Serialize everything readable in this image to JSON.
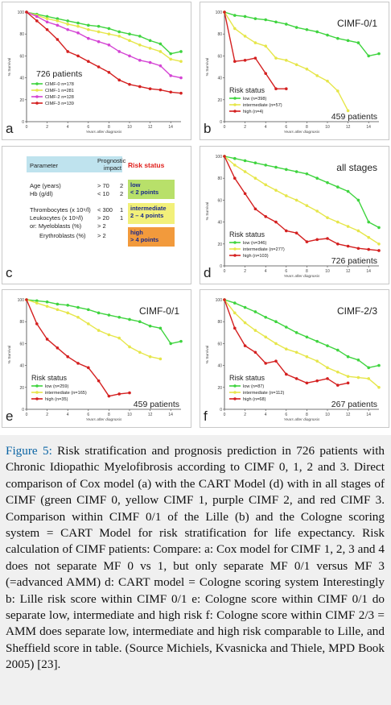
{
  "figure": {
    "panels": {
      "a": {
        "letter": "a",
        "note": "726 patients",
        "ylabel": "% Survival",
        "xlabel": "Years after diagnosis",
        "legend": [
          {
            "label": "CIMF-0 n=178",
            "color": "#3fd43f"
          },
          {
            "label": "CIMF-1 n=281",
            "color": "#e6e64a"
          },
          {
            "label": "CIMF-2 n=128",
            "color": "#d444d4"
          },
          {
            "label": "CIMF-3 n=139",
            "color": "#d42020"
          }
        ]
      },
      "b": {
        "letter": "b",
        "title": "CIMF-0/1",
        "note": "459 patients",
        "ylabel": "% Survival",
        "xlabel": "Years after diagnosis",
        "legend_title": "Risk status",
        "legend": [
          {
            "label": "low (n=398)",
            "color": "#3fd43f"
          },
          {
            "label": "intermediate (n=57)",
            "color": "#e6e64a"
          },
          {
            "label": "high (n=4)",
            "color": "#d42020"
          }
        ]
      },
      "c": {
        "letter": "c",
        "header": [
          "Parameter",
          "Prognostic impact",
          "Risk status"
        ],
        "rows": [
          [
            "Age (years)",
            "> 70",
            "2"
          ],
          [
            "Hb (g/dl)",
            "< 10",
            "2"
          ],
          [
            "Thrombocytes (x 10⁹/l)",
            "< 300",
            "1"
          ],
          [
            "Leukocytes (x 10⁹/l)",
            "> 20",
            "1"
          ],
          [
            "or: Myeloblasts (%)",
            "> 2",
            ""
          ],
          [
            "Erythroblasts (%)",
            "> 2",
            ""
          ]
        ],
        "risk": [
          {
            "text": "low\n< 2 points",
            "color": "#b8e06a"
          },
          {
            "text": "intermediate\n2 – 4 points",
            "color": "#f2f07a"
          },
          {
            "text": "high\n> 4 points",
            "color": "#f29a3c"
          }
        ]
      },
      "d": {
        "letter": "d",
        "title": "all stages",
        "note": "726 patients",
        "ylabel": "% Survival",
        "xlabel": "Years after diagnosis",
        "legend_title": "Risk status",
        "legend": [
          {
            "label": "low (n=346)",
            "color": "#3fd43f"
          },
          {
            "label": "intermediate (n=277)",
            "color": "#e6e64a"
          },
          {
            "label": "high (n=103)",
            "color": "#d42020"
          }
        ]
      },
      "e": {
        "letter": "e",
        "title": "CIMF-0/1",
        "note": "459 patients",
        "ylabel": "% Survival",
        "xlabel": "Years after diagnosis",
        "legend_title": "Risk status",
        "legend": [
          {
            "label": "low (n=259)",
            "color": "#3fd43f"
          },
          {
            "label": "intermediate (n=165)",
            "color": "#e6e64a"
          },
          {
            "label": "high (n=35)",
            "color": "#d42020"
          }
        ]
      },
      "f": {
        "letter": "f",
        "title": "CIMF-2/3",
        "note": "267 patients",
        "ylabel": "% Survival",
        "xlabel": "Years after diagnosis",
        "legend_title": "Risk status",
        "legend": [
          {
            "label": "low (n=87)",
            "color": "#3fd43f"
          },
          {
            "label": "intermediate (n=112)",
            "color": "#e6e64a"
          },
          {
            "label": "high (n=68)",
            "color": "#d42020"
          }
        ]
      }
    }
  },
  "chart_data": [
    {
      "panel": "a",
      "type": "line",
      "xlim": [
        0,
        15
      ],
      "ylim": [
        0,
        100
      ],
      "xticks": [
        0,
        2,
        4,
        6,
        8,
        10,
        12,
        14
      ],
      "yticks": [
        0,
        20,
        40,
        60,
        80,
        100
      ],
      "series": [
        {
          "name": "CIMF-0 n=178",
          "color": "#3fd43f",
          "x": [
            0,
            1,
            2,
            3,
            4,
            5,
            6,
            7,
            8,
            9,
            10,
            11,
            12,
            13,
            14,
            15
          ],
          "y": [
            100,
            98,
            96,
            94,
            92,
            90,
            88,
            87,
            85,
            82,
            80,
            78,
            74,
            71,
            62,
            64
          ]
        },
        {
          "name": "CIMF-1 n=281",
          "color": "#e6e64a",
          "x": [
            0,
            1,
            2,
            3,
            4,
            5,
            6,
            7,
            8,
            9,
            10,
            11,
            12,
            13,
            14,
            15
          ],
          "y": [
            100,
            97,
            94,
            92,
            89,
            87,
            84,
            82,
            80,
            78,
            74,
            70,
            67,
            64,
            57,
            55
          ]
        },
        {
          "name": "CIMF-2 n=128",
          "color": "#d444d4",
          "x": [
            0,
            1,
            2,
            3,
            4,
            5,
            6,
            7,
            8,
            9,
            10,
            11,
            12,
            13,
            14,
            15
          ],
          "y": [
            100,
            96,
            91,
            88,
            84,
            81,
            76,
            73,
            70,
            64,
            60,
            56,
            54,
            51,
            42,
            40
          ]
        },
        {
          "name": "CIMF-3 n=139",
          "color": "#d42020",
          "x": [
            0,
            1,
            2,
            3,
            4,
            5,
            6,
            7,
            8,
            9,
            10,
            11,
            12,
            13,
            14,
            15
          ],
          "y": [
            100,
            92,
            84,
            75,
            64,
            60,
            55,
            50,
            45,
            38,
            34,
            32,
            30,
            29,
            27,
            26
          ]
        }
      ]
    },
    {
      "panel": "b",
      "type": "line",
      "xlim": [
        0,
        15
      ],
      "ylim": [
        0,
        100
      ],
      "xticks": [
        0,
        2,
        4,
        6,
        8,
        10,
        12,
        14
      ],
      "yticks": [
        0,
        20,
        40,
        60,
        80,
        100
      ],
      "series": [
        {
          "name": "low (n=398)",
          "color": "#3fd43f",
          "x": [
            0,
            1,
            2,
            3,
            4,
            5,
            6,
            7,
            8,
            9,
            10,
            11,
            12,
            13,
            14,
            15
          ],
          "y": [
            100,
            97,
            96,
            94,
            93,
            91,
            89,
            86,
            84,
            82,
            79,
            76,
            74,
            72,
            60,
            62
          ]
        },
        {
          "name": "intermediate (n=57)",
          "color": "#e6e64a",
          "x": [
            0,
            1,
            2,
            3,
            4,
            5,
            6,
            7,
            8,
            9,
            10,
            11,
            12
          ],
          "y": [
            100,
            85,
            78,
            72,
            69,
            58,
            56,
            52,
            48,
            42,
            37,
            28,
            10
          ]
        },
        {
          "name": "high (n=4)",
          "color": "#d42020",
          "x": [
            0,
            1,
            2,
            3,
            4,
            5,
            6
          ],
          "y": [
            100,
            55,
            56,
            58,
            44,
            30,
            30
          ]
        }
      ]
    },
    {
      "panel": "d",
      "type": "line",
      "xlim": [
        0,
        15
      ],
      "ylim": [
        0,
        100
      ],
      "xticks": [
        0,
        2,
        4,
        6,
        8,
        10,
        12,
        14
      ],
      "yticks": [
        0,
        20,
        40,
        60,
        80,
        100
      ],
      "series": [
        {
          "name": "low (n=346)",
          "color": "#3fd43f",
          "x": [
            0,
            1,
            2,
            3,
            4,
            5,
            6,
            7,
            8,
            9,
            10,
            11,
            12,
            13,
            14,
            15
          ],
          "y": [
            100,
            98,
            96,
            94,
            92,
            90,
            88,
            86,
            84,
            80,
            76,
            72,
            68,
            60,
            40,
            35
          ]
        },
        {
          "name": "intermediate (n=277)",
          "color": "#e6e64a",
          "x": [
            0,
            1,
            2,
            3,
            4,
            5,
            6,
            7,
            8,
            9,
            10,
            11,
            12,
            13,
            14,
            15
          ],
          "y": [
            100,
            92,
            86,
            80,
            74,
            69,
            64,
            60,
            55,
            50,
            44,
            40,
            36,
            32,
            26,
            20
          ]
        },
        {
          "name": "high (n=103)",
          "color": "#d42020",
          "x": [
            0,
            1,
            2,
            3,
            4,
            5,
            6,
            7,
            8,
            9,
            10,
            11,
            12,
            13,
            14,
            15
          ],
          "y": [
            100,
            80,
            66,
            52,
            45,
            40,
            32,
            30,
            22,
            24,
            25,
            20,
            18,
            16,
            15,
            14
          ]
        }
      ]
    },
    {
      "panel": "e",
      "type": "line",
      "xlim": [
        0,
        15
      ],
      "ylim": [
        0,
        100
      ],
      "xticks": [
        0,
        2,
        4,
        6,
        8,
        10,
        12,
        14
      ],
      "yticks": [
        0,
        20,
        40,
        60,
        80,
        100
      ],
      "series": [
        {
          "name": "low (n=259)",
          "color": "#3fd43f",
          "x": [
            0,
            1,
            2,
            3,
            4,
            5,
            6,
            7,
            8,
            9,
            10,
            11,
            12,
            13,
            14,
            15
          ],
          "y": [
            100,
            99,
            98,
            96,
            95,
            93,
            91,
            88,
            86,
            84,
            82,
            80,
            76,
            74,
            60,
            62
          ]
        },
        {
          "name": "intermediate (n=165)",
          "color": "#e6e64a",
          "x": [
            0,
            1,
            2,
            3,
            4,
            5,
            6,
            7,
            8,
            9,
            10,
            11,
            12,
            13
          ],
          "y": [
            100,
            97,
            94,
            91,
            88,
            84,
            78,
            72,
            68,
            65,
            57,
            52,
            48,
            46
          ]
        },
        {
          "name": "high (n=35)",
          "color": "#d42020",
          "x": [
            0,
            1,
            2,
            3,
            4,
            5,
            6,
            7,
            8,
            9,
            10
          ],
          "y": [
            100,
            78,
            64,
            56,
            48,
            42,
            38,
            26,
            12,
            14,
            15
          ]
        }
      ]
    },
    {
      "panel": "f",
      "type": "line",
      "xlim": [
        0,
        15
      ],
      "ylim": [
        0,
        100
      ],
      "xticks": [
        0,
        2,
        4,
        6,
        8,
        10,
        12,
        14
      ],
      "yticks": [
        0,
        20,
        40,
        60,
        80,
        100
      ],
      "series": [
        {
          "name": "low (n=87)",
          "color": "#3fd43f",
          "x": [
            0,
            1,
            2,
            3,
            4,
            5,
            6,
            7,
            8,
            9,
            10,
            11,
            12,
            13,
            14,
            15
          ],
          "y": [
            100,
            97,
            93,
            89,
            84,
            80,
            75,
            70,
            66,
            62,
            58,
            54,
            48,
            45,
            38,
            40
          ]
        },
        {
          "name": "intermediate (n=112)",
          "color": "#e6e64a",
          "x": [
            0,
            1,
            2,
            3,
            4,
            5,
            6,
            7,
            8,
            9,
            10,
            11,
            12,
            13,
            14,
            15
          ],
          "y": [
            100,
            88,
            79,
            72,
            66,
            60,
            55,
            52,
            48,
            44,
            38,
            34,
            30,
            29,
            28,
            20
          ]
        },
        {
          "name": "high (n=68)",
          "color": "#d42020",
          "x": [
            0,
            1,
            2,
            3,
            4,
            5,
            6,
            7,
            8,
            9,
            10,
            11,
            12
          ],
          "y": [
            100,
            74,
            58,
            52,
            42,
            44,
            32,
            28,
            24,
            26,
            28,
            22,
            24
          ]
        }
      ]
    }
  ],
  "caption": {
    "fig_label": "Figure 5:",
    "text": " Risk stratification and prognosis prediction in 726 patients with Chronic Idiopathic Myelofibrosis according to CIMF 0, 1, 2 and 3. Direct comparison of Cox model (a) with the CART Model (d) with in all stages of CIMF (green CIMF 0, yellow CIMF 1, purple CIMF 2, and red CIMF 3. Comparison within CIMF 0/1 of the Lille (b) and the Cologne scoring system = CART Model for risk stratification for life expectancy. Risk calculation of CIMF patients: Compare: a: Cox model for CIMF 1, 2, 3 and 4 does not separate MF 0 vs 1, but only separate MF 0/1 versus MF 3 (=advanced AMM) d: CART model = Cologne scoring system Interestingly b: Lille risk score within CIMF 0/1 e: Cologne score within CIMF 0/1 do separate low, intermediate and high risk f: Cologne score within CIMF 2/3 = AMM does separate low, intermediate and high risk comparable to Lille, and Sheffield score in table. (Source Michiels, Kvasnicka and Thiele, MPD Book 2005) [23]."
  }
}
